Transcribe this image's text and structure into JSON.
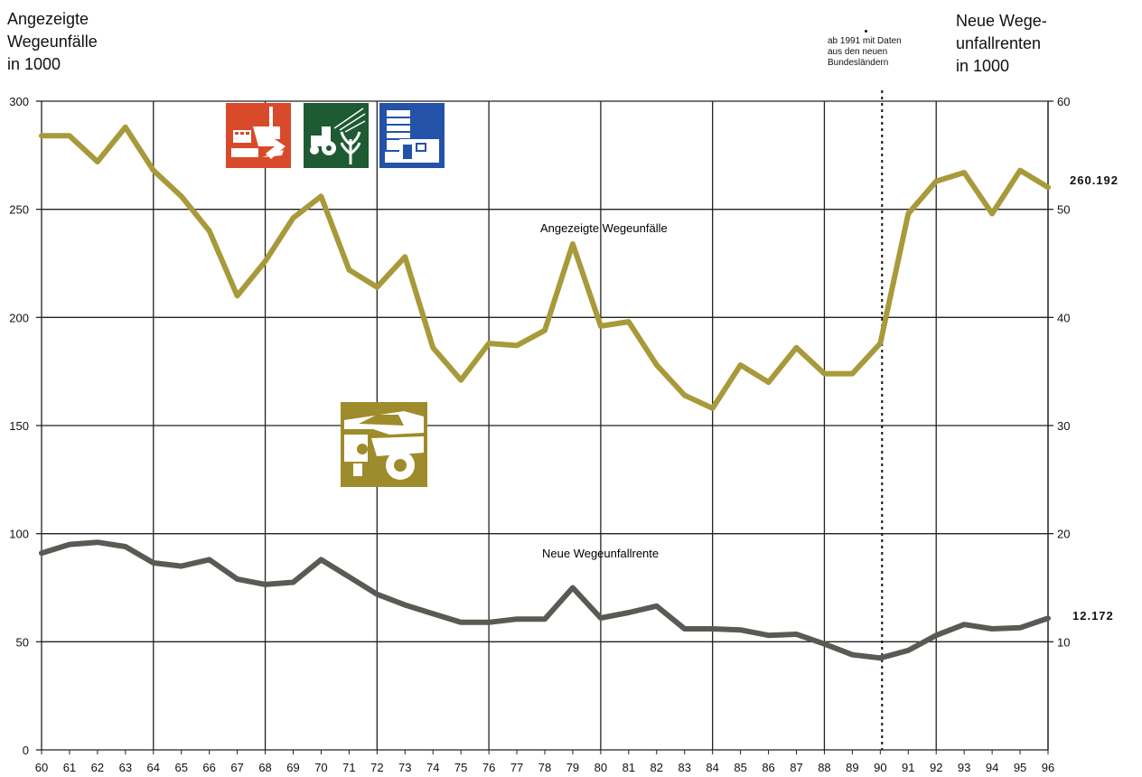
{
  "labels": {
    "left_axis_title": "Angezeigte\nWegeunfälle\nin 1000",
    "right_axis_title": "Neue Wege-\nunfallrenten\nin 1000",
    "note": "ab 1991 mit Daten\naus den neuen\nBundesländern"
  },
  "icons": {
    "industry": {
      "name": "factory-icon",
      "color": "#d94a2b"
    },
    "agriculture": {
      "name": "tractor-wheat-icon",
      "color": "#1e5a32"
    },
    "administration": {
      "name": "office-building-icon",
      "color": "#2352a8"
    },
    "traffic": {
      "name": "car-accident-icon",
      "color": "#9e8b2c"
    }
  },
  "chart_data": {
    "type": "line",
    "x": [
      "60",
      "61",
      "62",
      "63",
      "64",
      "65",
      "66",
      "67",
      "68",
      "69",
      "70",
      "71",
      "72",
      "73",
      "74",
      "75",
      "76",
      "77",
      "78",
      "79",
      "80",
      "81",
      "82",
      "83",
      "84",
      "85",
      "86",
      "87",
      "88",
      "89",
      "90",
      "91",
      "92",
      "93",
      "94",
      "95",
      "96"
    ],
    "left_axis": {
      "ylim": [
        0,
        300
      ],
      "ticks": [
        "0",
        "50",
        "100",
        "150",
        "200",
        "250",
        "300"
      ]
    },
    "right_axis": {
      "ylim": [
        0,
        60
      ],
      "ticks": [
        "10",
        "20",
        "30",
        "40",
        "50",
        "60"
      ]
    },
    "marker_year": "91",
    "grid": true,
    "series": [
      {
        "name": "Angezeigte Wegeunfälle",
        "axis": "left",
        "color": "#a89a3a",
        "values": [
          284,
          284,
          272,
          288,
          268,
          256,
          240,
          210,
          226,
          246,
          256,
          222,
          214,
          228,
          186,
          171,
          188,
          187,
          194,
          234,
          196,
          198,
          178,
          164,
          158,
          178,
          170,
          186,
          174,
          174,
          188,
          248,
          263,
          267,
          248,
          268,
          260.192
        ],
        "end_label": "260.192"
      },
      {
        "name": "Neue Wegeunfallrente",
        "axis": "right",
        "color": "#5a5a55",
        "values": [
          18.2,
          19.0,
          19.2,
          18.8,
          17.3,
          17.0,
          17.6,
          15.8,
          15.3,
          15.5,
          17.6,
          16.0,
          14.4,
          13.4,
          12.6,
          11.8,
          11.8,
          12.1,
          12.1,
          15.0,
          12.2,
          12.7,
          13.3,
          11.2,
          11.2,
          11.1,
          10.6,
          10.7,
          9.8,
          8.8,
          8.5,
          9.2,
          10.6,
          11.6,
          11.2,
          11.3,
          12.172
        ],
        "end_label": "12.172"
      }
    ]
  }
}
